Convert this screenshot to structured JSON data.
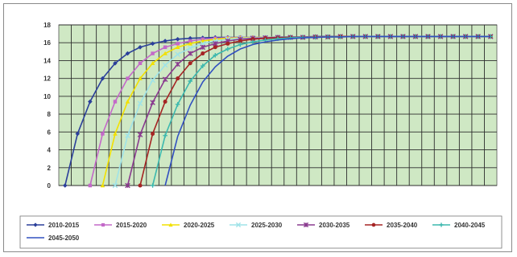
{
  "chart_data": {
    "type": "line",
    "title": "",
    "xlabel": "",
    "ylabel": "",
    "ylim": [
      0,
      18
    ],
    "yticks": [
      "0",
      "2",
      "4",
      "6",
      "8",
      "10",
      "12",
      "14",
      "16",
      "18"
    ],
    "x_categories": 35,
    "grid": true,
    "plot_background": "#cfe8c4",
    "legend_position": "bottom",
    "series": [
      {
        "name": "2010-2015",
        "color": "#2b3f9a",
        "marker": "diamond",
        "values": [
          0,
          5.8,
          9.4,
          12.0,
          13.7,
          14.8,
          15.5,
          15.9,
          16.2,
          16.4,
          16.5,
          16.55,
          16.6,
          16.6,
          16.6,
          16.6,
          16.6,
          16.65,
          16.65,
          16.65,
          16.7,
          16.7,
          16.7,
          16.7,
          16.7,
          16.7,
          16.7,
          16.7,
          16.7,
          16.7,
          16.7,
          16.7,
          16.7,
          16.7,
          16.7
        ]
      },
      {
        "name": "2015-2020",
        "color": "#c469c9",
        "marker": "square",
        "values": [
          null,
          null,
          0,
          5.8,
          9.4,
          12.0,
          13.7,
          14.8,
          15.5,
          15.9,
          16.2,
          16.4,
          16.5,
          16.55,
          16.6,
          16.6,
          16.6,
          16.6,
          16.6,
          16.65,
          16.65,
          16.65,
          16.7,
          16.7,
          16.7,
          16.7,
          16.7,
          16.7,
          16.7,
          16.7,
          16.7,
          16.7,
          16.7,
          16.7,
          16.7
        ]
      },
      {
        "name": "2020-2025",
        "color": "#f2e000",
        "marker": "triangle",
        "values": [
          null,
          null,
          null,
          0,
          5.8,
          9.4,
          12.0,
          13.7,
          14.8,
          15.5,
          15.9,
          16.2,
          16.4,
          16.5,
          16.55,
          16.6,
          16.6,
          16.6,
          16.6,
          16.6,
          16.65,
          16.65,
          16.65,
          16.7,
          16.7,
          16.7,
          16.7,
          16.7,
          16.7,
          16.7,
          16.7,
          16.7,
          16.7,
          16.7,
          16.7
        ]
      },
      {
        "name": "2025-2030",
        "color": "#9fe3e8",
        "marker": "x",
        "values": [
          null,
          null,
          null,
          null,
          0,
          5.6,
          9.2,
          11.8,
          13.5,
          14.7,
          15.4,
          15.9,
          16.2,
          16.4,
          16.5,
          16.55,
          16.6,
          16.6,
          16.6,
          16.6,
          16.65,
          16.65,
          16.7,
          16.7,
          16.7,
          16.7,
          16.7,
          16.7,
          16.7,
          16.7,
          16.7,
          16.7,
          16.7,
          16.7,
          16.7
        ]
      },
      {
        "name": "2030-2035",
        "color": "#8a3b8f",
        "marker": "asterisk",
        "values": [
          null,
          null,
          null,
          null,
          null,
          0,
          5.7,
          9.3,
          11.9,
          13.6,
          14.8,
          15.5,
          15.9,
          16.2,
          16.4,
          16.5,
          16.55,
          16.6,
          16.6,
          16.6,
          16.65,
          16.65,
          16.7,
          16.7,
          16.7,
          16.7,
          16.7,
          16.7,
          16.7,
          16.7,
          16.7,
          16.7,
          16.7,
          16.7,
          16.7
        ]
      },
      {
        "name": "2035-2040",
        "color": "#a52424",
        "marker": "circle",
        "values": [
          null,
          null,
          null,
          null,
          null,
          null,
          0,
          5.8,
          9.4,
          12.0,
          13.7,
          14.8,
          15.5,
          15.9,
          16.2,
          16.4,
          16.5,
          16.55,
          16.6,
          16.6,
          16.65,
          16.65,
          16.7,
          16.7,
          16.7,
          16.7,
          16.7,
          16.7,
          16.7,
          16.7,
          16.7,
          16.7,
          16.7,
          16.7,
          16.7
        ]
      },
      {
        "name": "2040-2045",
        "color": "#3cb8ae",
        "marker": "plus",
        "values": [
          null,
          null,
          null,
          null,
          null,
          null,
          null,
          0,
          5.6,
          9.1,
          11.7,
          13.4,
          14.6,
          15.3,
          15.8,
          16.1,
          16.3,
          16.45,
          16.55,
          16.6,
          16.6,
          16.65,
          16.65,
          16.7,
          16.7,
          16.7,
          16.7,
          16.7,
          16.7,
          16.7,
          16.7,
          16.7,
          16.7,
          16.7,
          16.7
        ]
      },
      {
        "name": "2045-2050",
        "color": "#3150c0",
        "marker": "none",
        "values": [
          null,
          null,
          null,
          null,
          null,
          null,
          null,
          null,
          0,
          5.5,
          9.0,
          11.6,
          13.3,
          14.5,
          15.3,
          15.8,
          16.1,
          16.3,
          16.45,
          16.55,
          16.6,
          16.65,
          16.65,
          16.7,
          16.7,
          16.7,
          16.7,
          16.7,
          16.7,
          16.7,
          16.7,
          16.7,
          16.7,
          16.7,
          16.7
        ]
      }
    ]
  }
}
